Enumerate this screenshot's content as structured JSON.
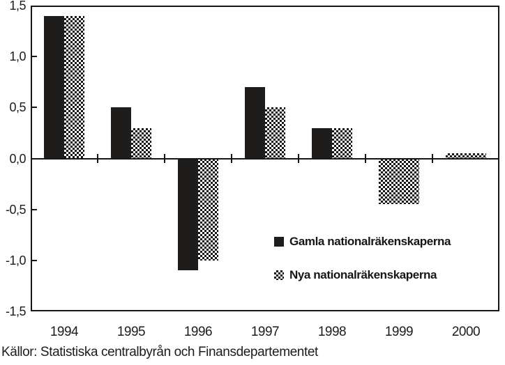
{
  "chart_data": {
    "type": "bar",
    "categories": [
      "1994",
      "1995",
      "1996",
      "1997",
      "1998",
      "1999",
      "2000"
    ],
    "series": [
      {
        "name": "Gamla nationalräkenskaperna",
        "style": "solid",
        "values": [
          1.4,
          0.5,
          -1.1,
          0.7,
          0.3,
          null,
          null
        ]
      },
      {
        "name": "Nya nationalräkenskaperna",
        "style": "checker",
        "values": [
          1.4,
          0.3,
          -1.0,
          0.5,
          0.3,
          -0.45,
          0.05
        ]
      }
    ],
    "ylim": [
      -1.5,
      1.5
    ],
    "ytick_values": [
      1.5,
      1.0,
      0.5,
      0.0,
      -0.5,
      -1.0,
      -1.5
    ],
    "ytick_labels": [
      "1,5",
      "1,0",
      "0,5",
      "0,0",
      "-0,5",
      "-1,0",
      "-1,5"
    ],
    "inner_axis_tick_values": [
      1.0,
      0.5,
      -0.5,
      -1.0
    ],
    "grid": false,
    "legend_position": "inside-lower-right",
    "bar_colors": {
      "solid": "#1e1d1c",
      "checker": "checkerboard black/white"
    }
  },
  "source_note": "Källor: Statistiska centralbyrån och Finansdepartementet",
  "colors": {
    "axis": "#161616",
    "background": "#ffffff",
    "bar_solid": "#1e1d1c"
  }
}
